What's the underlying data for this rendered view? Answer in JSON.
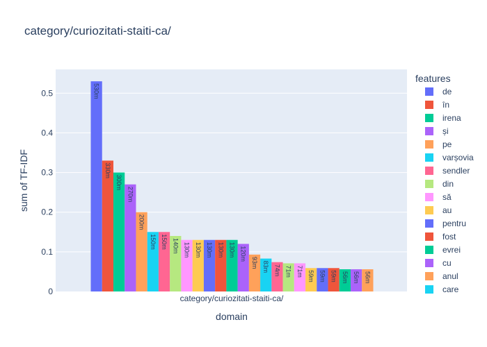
{
  "chart_data": {
    "type": "bar",
    "title": "category/curiozitati-staiti-ca/",
    "xlabel": "domain",
    "ylabel": "sum of TF-IDF",
    "categories": [
      "category/curiozitati-staiti-ca/"
    ],
    "ylim": [
      0,
      0.56
    ],
    "yticks": [
      0,
      0.1,
      0.2,
      0.3,
      0.4,
      0.5
    ],
    "ytick_labels": [
      "0",
      "0.1",
      "0.2",
      "0.3",
      "0.4",
      "0.5"
    ],
    "grid": true,
    "legend_title": "features",
    "legend_placement": "right",
    "series": [
      {
        "name": "de",
        "value": 0.53,
        "label": "530m",
        "color": "#636efa"
      },
      {
        "name": "în",
        "value": 0.33,
        "label": "330m",
        "color": "#EF553B"
      },
      {
        "name": "irena",
        "value": 0.3,
        "label": "300m",
        "color": "#00cc96"
      },
      {
        "name": "și",
        "value": 0.27,
        "label": "270m",
        "color": "#ab63fa"
      },
      {
        "name": "pe",
        "value": 0.2,
        "label": "200m",
        "color": "#FFA15A"
      },
      {
        "name": "varșovia",
        "value": 0.15,
        "label": "150m",
        "color": "#19d3f3"
      },
      {
        "name": "sendler",
        "value": 0.15,
        "label": "150m",
        "color": "#FF6692"
      },
      {
        "name": "din",
        "value": 0.14,
        "label": "140m",
        "color": "#B6E880"
      },
      {
        "name": "să",
        "value": 0.13,
        "label": "130m",
        "color": "#FF97FF"
      },
      {
        "name": "au",
        "value": 0.13,
        "label": "130m",
        "color": "#FECB52"
      },
      {
        "name": "pentru",
        "value": 0.13,
        "label": "130m",
        "color": "#636efa"
      },
      {
        "name": "fost",
        "value": 0.13,
        "label": "130m",
        "color": "#EF553B"
      },
      {
        "name": "evrei",
        "value": 0.13,
        "label": "130m",
        "color": "#00cc96"
      },
      {
        "name": "cu",
        "value": 0.12,
        "label": "120m",
        "color": "#ab63fa"
      },
      {
        "name": "anul",
        "value": 0.093,
        "label": "93m",
        "color": "#FFA15A"
      },
      {
        "name": "care",
        "value": 0.083,
        "label": "83m",
        "color": "#19d3f3"
      },
      {
        "name": "",
        "value": 0.074,
        "label": "74m",
        "color": "#FF6692"
      },
      {
        "name": "",
        "value": 0.071,
        "label": "71m",
        "color": "#B6E880"
      },
      {
        "name": "",
        "value": 0.071,
        "label": "71m",
        "color": "#FF97FF"
      },
      {
        "name": "",
        "value": 0.059,
        "label": "59m",
        "color": "#FECB52"
      },
      {
        "name": "",
        "value": 0.059,
        "label": "59m",
        "color": "#636efa"
      },
      {
        "name": "",
        "value": 0.059,
        "label": "59m",
        "color": "#EF553B"
      },
      {
        "name": "",
        "value": 0.056,
        "label": "56m",
        "color": "#00cc96"
      },
      {
        "name": "",
        "value": 0.056,
        "label": "56m",
        "color": "#ab63fa"
      },
      {
        "name": "",
        "value": 0.056,
        "label": "56m",
        "color": "#FFA15A"
      }
    ]
  }
}
